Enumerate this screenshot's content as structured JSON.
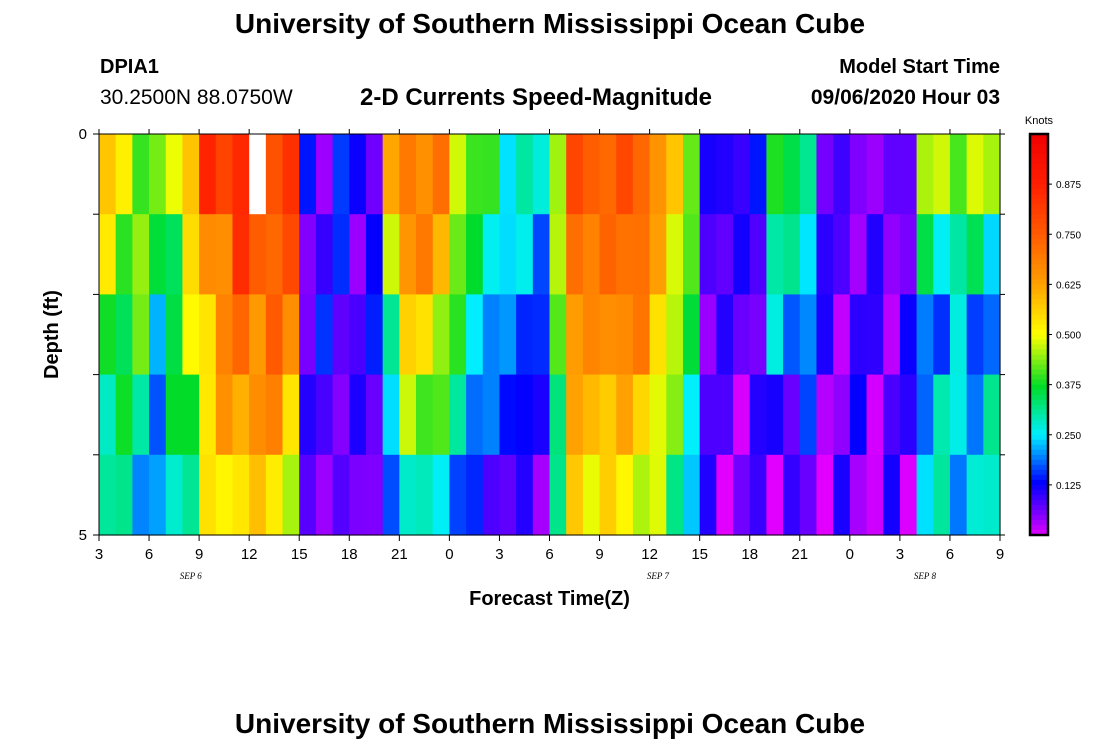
{
  "header": {
    "title": "University of Southern Mississippi Ocean Cube",
    "station": "DPIA1",
    "coords": "30.2500N 88.0750W",
    "subtitle": "2-D Currents Speed-Magnitude",
    "start_label": "Model Start Time",
    "start_value": "09/06/2020 Hour 03"
  },
  "footer": {
    "title": "University of Southern Mississippi Ocean Cube"
  },
  "chart_data": {
    "type": "heatmap",
    "xlabel": "Forecast Time(Z)",
    "ylabel": "Depth (ft)",
    "x_ticks": [
      "3",
      "6",
      "9",
      "12",
      "15",
      "18",
      "21",
      "0",
      "3",
      "6",
      "9",
      "12",
      "15",
      "18",
      "21",
      "0",
      "3",
      "6",
      "9"
    ],
    "date_labels": [
      {
        "text": "SEP 6",
        "hour_index": 5.5
      },
      {
        "text": "SEP 7",
        "hour_index": 33.5
      },
      {
        "text": "SEP 8",
        "hour_index": 49.5
      }
    ],
    "y_ticks": [
      "0",
      "5"
    ],
    "y_range": [
      0,
      5
    ],
    "n_hours": 54,
    "depth_rows": 5,
    "colorbar": {
      "title": "Knots",
      "range": [
        0,
        1.0
      ],
      "ticks": [
        "0.875",
        "0.750",
        "0.625",
        "0.500",
        "0.375",
        "0.250",
        "0.125"
      ],
      "tick_values": [
        0.875,
        0.75,
        0.625,
        0.5,
        0.375,
        0.25,
        0.125
      ]
    },
    "keyframes": [
      {
        "h": 0,
        "v": [
          0.55,
          0.47,
          0.4,
          0.35,
          0.3
        ]
      },
      {
        "h": 2,
        "v": [
          0.45,
          0.43,
          0.36,
          0.3,
          0.25
        ]
      },
      {
        "h": 3,
        "v": [
          0.38,
          0.32,
          0.27,
          0.22,
          0.18
        ]
      },
      {
        "h": 5,
        "v": [
          0.62,
          0.5,
          0.45,
          0.4,
          0.35
        ]
      },
      {
        "h": 6,
        "v": [
          0.8,
          0.65,
          0.6,
          0.55,
          0.5
        ]
      },
      {
        "h": 8,
        "v": [
          0.87,
          0.78,
          0.7,
          0.65,
          0.55
        ]
      },
      {
        "h": 10,
        "v": [
          0.83,
          0.76,
          0.7,
          0.65,
          0.55
        ]
      },
      {
        "h": 11,
        "v": [
          0.82,
          0.72,
          0.66,
          0.58,
          0.45
        ]
      },
      {
        "h": 11.8,
        "v": [
          0.55,
          0.4,
          0.35,
          0.3,
          0.25
        ]
      },
      {
        "h": 12,
        "v": [
          0.1,
          0.1,
          0.1,
          0.08,
          0.06
        ]
      },
      {
        "h": 16,
        "v": [
          0.12,
          0.1,
          0.1,
          0.08,
          0.06
        ]
      },
      {
        "h": 17,
        "v": [
          0.55,
          0.45,
          0.35,
          0.25,
          0.15
        ]
      },
      {
        "h": 18,
        "v": [
          0.72,
          0.7,
          0.55,
          0.45,
          0.3
        ]
      },
      {
        "h": 20,
        "v": [
          0.65,
          0.6,
          0.48,
          0.4,
          0.25
        ]
      },
      {
        "h": 22,
        "v": [
          0.4,
          0.32,
          0.25,
          0.2,
          0.12
        ]
      },
      {
        "h": 24,
        "v": [
          0.3,
          0.25,
          0.18,
          0.15,
          0.08
        ]
      },
      {
        "h": 26,
        "v": [
          0.25,
          0.2,
          0.15,
          0.1,
          0.07
        ]
      },
      {
        "h": 27,
        "v": [
          0.5,
          0.45,
          0.4,
          0.35,
          0.3
        ]
      },
      {
        "h": 28,
        "v": [
          0.75,
          0.7,
          0.65,
          0.6,
          0.55
        ]
      },
      {
        "h": 32,
        "v": [
          0.75,
          0.72,
          0.68,
          0.58,
          0.5
        ]
      },
      {
        "h": 34,
        "v": [
          0.55,
          0.5,
          0.45,
          0.4,
          0.35
        ]
      },
      {
        "h": 35,
        "v": [
          0.45,
          0.4,
          0.35,
          0.3,
          0.25
        ]
      },
      {
        "h": 36,
        "v": [
          0.1,
          0.08,
          0.07,
          0.06,
          0.05
        ]
      },
      {
        "h": 39,
        "v": [
          0.12,
          0.1,
          0.08,
          0.06,
          0.05
        ]
      },
      {
        "h": 40,
        "v": [
          0.4,
          0.3,
          0.22,
          0.12,
          0.06
        ]
      },
      {
        "h": 42,
        "v": [
          0.3,
          0.28,
          0.2,
          0.1,
          0.05
        ]
      },
      {
        "h": 43,
        "v": [
          0.08,
          0.08,
          0.07,
          0.06,
          0.05
        ]
      },
      {
        "h": 47,
        "v": [
          0.04,
          0.06,
          0.08,
          0.07,
          0.05
        ]
      },
      {
        "h": 48,
        "v": [
          0.1,
          0.08,
          0.07,
          0.06,
          0.05
        ]
      },
      {
        "h": 49,
        "v": [
          0.45,
          0.3,
          0.2,
          0.25,
          0.25
        ]
      },
      {
        "h": 53,
        "v": [
          0.45,
          0.3,
          0.2,
          0.25,
          0.25
        ]
      }
    ],
    "missing_cells": [
      {
        "hour": 9,
        "row": 0
      }
    ],
    "colors": {
      "missing": "#ffffff",
      "axis": "#000000"
    }
  }
}
